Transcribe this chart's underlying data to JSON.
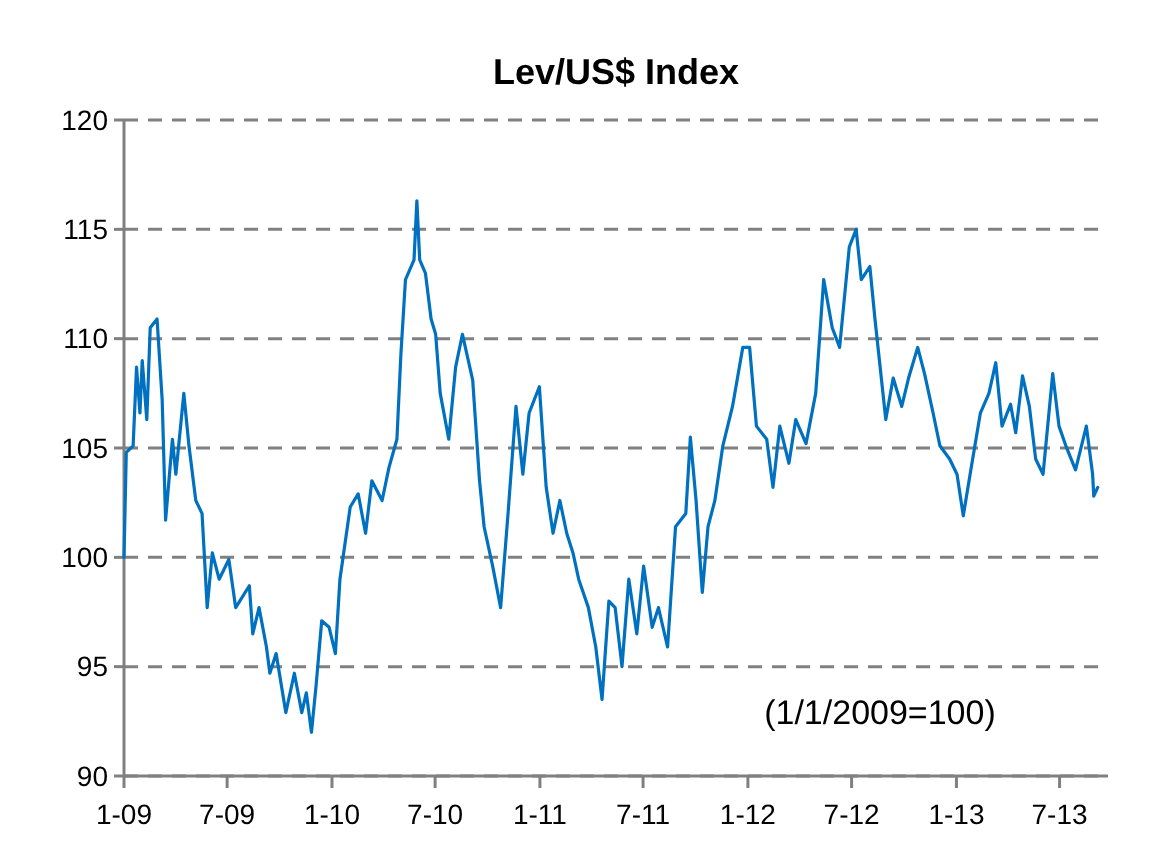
{
  "chart_data": {
    "type": "line",
    "title": "Lev/US$ Index",
    "annotations": [
      "(1/1/2009=100)"
    ],
    "xlim": [
      "2009-01-01",
      "2013-09-24"
    ],
    "xticks": [
      {
        "value": "2009-01-01",
        "label": "1-09"
      },
      {
        "value": "2009-07-01",
        "label": "7-09"
      },
      {
        "value": "2010-01-01",
        "label": "1-10"
      },
      {
        "value": "2010-07-01",
        "label": "7-10"
      },
      {
        "value": "2011-01-01",
        "label": "1-11"
      },
      {
        "value": "2011-07-01",
        "label": "7-11"
      },
      {
        "value": "2012-01-01",
        "label": "1-12"
      },
      {
        "value": "2012-07-01",
        "label": "7-12"
      },
      {
        "value": "2013-01-01",
        "label": "1-13"
      },
      {
        "value": "2013-07-01",
        "label": "7-13"
      }
    ],
    "ylim": [
      90,
      120
    ],
    "yticks": [
      90,
      95,
      100,
      105,
      110,
      115,
      120
    ],
    "grid": "y",
    "line_style": "solid",
    "marker": "none",
    "x": [
      "2009-01-01",
      "2009-01-05",
      "2009-01-17",
      "2009-01-23",
      "2009-01-29",
      "2009-02-02",
      "2009-02-10",
      "2009-02-16",
      "2009-02-28",
      "2009-03-09",
      "2009-03-15",
      "2009-03-27",
      "2009-04-02",
      "2009-04-16",
      "2009-04-25",
      "2009-05-07",
      "2009-05-18",
      "2009-05-27",
      "2009-06-05",
      "2009-06-17",
      "2009-07-04",
      "2009-07-16",
      "2009-08-09",
      "2009-08-15",
      "2009-08-26",
      "2009-09-08",
      "2009-09-14",
      "2009-09-25",
      "2009-10-12",
      "2009-10-27",
      "2009-11-09",
      "2009-11-17",
      "2009-11-26",
      "2009-12-04",
      "2009-12-14",
      "2009-12-27",
      "2010-01-07",
      "2010-01-15",
      "2010-02-02",
      "2010-02-16",
      "2010-03-01",
      "2010-03-12",
      "2010-03-30",
      "2010-04-11",
      "2010-04-25",
      "2010-05-02",
      "2010-05-10",
      "2010-05-25",
      "2010-05-30",
      "2010-06-04",
      "2010-06-14",
      "2010-06-24",
      "2010-07-02",
      "2010-07-10",
      "2010-07-25",
      "2010-08-06",
      "2010-08-18",
      "2010-09-05",
      "2010-09-17",
      "2010-09-25",
      "2010-10-10",
      "2010-10-24",
      "2010-11-06",
      "2010-11-20",
      "2010-12-02",
      "2010-12-13",
      "2010-12-31",
      "2011-01-12",
      "2011-01-24",
      "2011-02-05",
      "2011-02-17",
      "2011-02-28",
      "2011-03-10",
      "2011-03-27",
      "2011-04-09",
      "2011-04-20",
      "2011-05-02",
      "2011-05-13",
      "2011-05-25",
      "2011-06-06",
      "2011-06-20",
      "2011-07-02",
      "2011-07-17",
      "2011-07-28",
      "2011-08-13",
      "2011-08-27",
      "2011-09-14",
      "2011-09-22",
      "2011-10-02",
      "2011-10-13",
      "2011-10-23",
      "2011-11-04",
      "2011-11-18",
      "2011-12-05",
      "2011-12-23",
      "2012-01-04",
      "2012-01-16",
      "2012-02-03",
      "2012-02-14",
      "2012-02-26",
      "2012-03-13",
      "2012-03-25",
      "2012-04-12",
      "2012-04-29",
      "2012-05-13",
      "2012-05-28",
      "2012-06-10",
      "2012-06-27",
      "2012-07-09",
      "2012-07-18",
      "2012-08-02",
      "2012-08-11",
      "2012-08-30",
      "2012-09-12",
      "2012-09-27",
      "2012-10-09",
      "2012-10-25",
      "2012-11-06",
      "2012-11-21",
      "2012-12-03",
      "2012-12-20",
      "2013-01-02",
      "2013-01-13",
      "2013-01-25",
      "2013-02-12",
      "2013-02-27",
      "2013-03-11",
      "2013-03-22",
      "2013-04-06",
      "2013-04-15",
      "2013-04-27",
      "2013-05-09",
      "2013-05-20",
      "2013-06-02",
      "2013-06-19",
      "2013-06-30",
      "2013-07-12",
      "2013-07-29",
      "2013-08-17",
      "2013-08-28",
      "2013-08-30",
      "2013-09-06"
    ],
    "series": [
      {
        "color": "#0070c0",
        "values": [
          100,
          104.8,
          105.1,
          108.7,
          106.6,
          109,
          106.3,
          110.5,
          110.9,
          107.2,
          101.7,
          105.4,
          103.8,
          107.5,
          105.1,
          102.6,
          102,
          97.7,
          100.2,
          99,
          99.9,
          97.7,
          98.7,
          96.5,
          97.7,
          95.9,
          94.7,
          95.6,
          92.9,
          94.7,
          92.9,
          93.8,
          92,
          94.1,
          97.1,
          96.8,
          95.6,
          99,
          102.3,
          102.9,
          101.1,
          103.5,
          102.6,
          104.1,
          105.4,
          109.3,
          112.7,
          113.6,
          116.3,
          113.6,
          113,
          110.9,
          110.2,
          107.5,
          105.4,
          108.7,
          110.2,
          108.1,
          103.5,
          101.4,
          99.6,
          97.7,
          102,
          106.9,
          103.8,
          106.6,
          107.8,
          103.2,
          101.1,
          102.6,
          101.1,
          100.2,
          99,
          97.7,
          95.9,
          93.5,
          98,
          97.7,
          95,
          99,
          96.5,
          99.6,
          96.8,
          97.7,
          95.9,
          101.4,
          102,
          105.5,
          102.6,
          98.4,
          101.4,
          102.6,
          105.1,
          106.9,
          109.6,
          109.6,
          106,
          105.4,
          103.2,
          106,
          104.3,
          106.3,
          105.2,
          107.5,
          112.7,
          110.5,
          109.6,
          114.2,
          115,
          112.7,
          113.3,
          110.9,
          106.3,
          108.2,
          106.9,
          108.2,
          109.6,
          108.4,
          106.6,
          105.1,
          104.5,
          103.8,
          101.9,
          103.8,
          106.6,
          107.5,
          108.9,
          106,
          107,
          105.7,
          108.3,
          106.9,
          104.5,
          103.8,
          108.4,
          106,
          105.1,
          104,
          106,
          103.8,
          102.8,
          103.2
        ]
      }
    ]
  }
}
